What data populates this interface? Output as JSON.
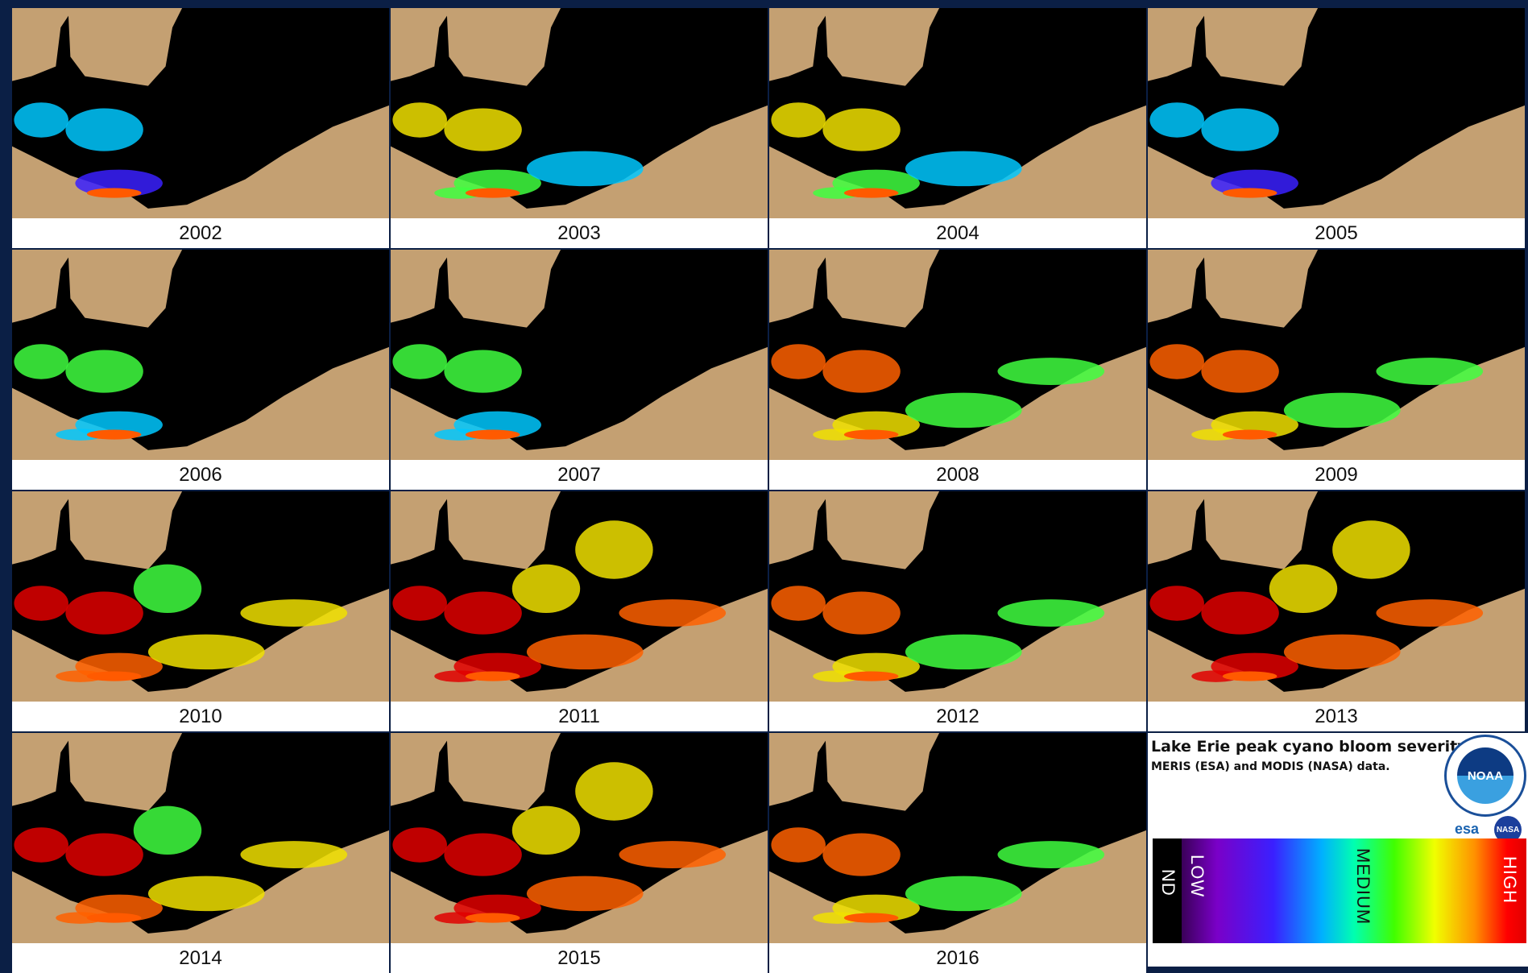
{
  "panels": [
    {
      "label": "2002"
    },
    {
      "label": "2003"
    },
    {
      "label": "2004"
    },
    {
      "label": "2005"
    },
    {
      "label": "2006"
    },
    {
      "label": "2007"
    },
    {
      "label": "2008"
    },
    {
      "label": "2009"
    },
    {
      "label": "2010"
    },
    {
      "label": "2011"
    },
    {
      "label": "2012"
    },
    {
      "label": "2013"
    },
    {
      "label": "2014"
    },
    {
      "label": "2015"
    },
    {
      "label": "2016"
    }
  ],
  "legend": {
    "title": "Lake Erie peak cyano bloom severity:",
    "subtitle": "MERIS (ESA) and MODIS (NASA) data.",
    "scale_labels": [
      "ND",
      "LOW",
      "MEDIUM",
      "HIGH"
    ],
    "logos": [
      "NOAA",
      "esa",
      "NASA"
    ]
  }
}
